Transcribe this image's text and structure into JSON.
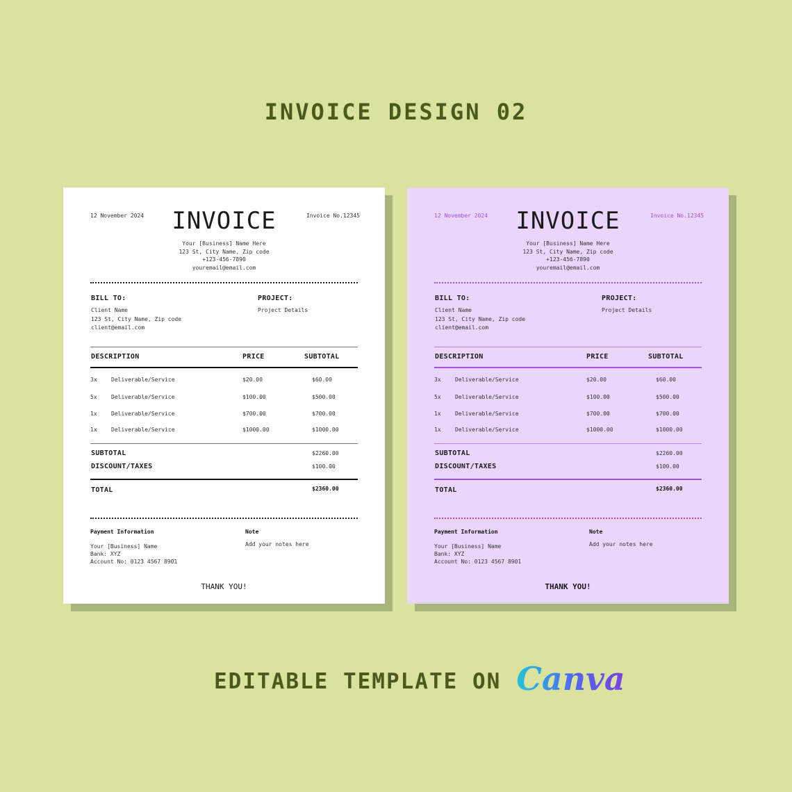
{
  "heading": "INVOICE DESIGN 02",
  "footer": {
    "text": "EDITABLE TEMPLATE ON",
    "logo": "Canva"
  },
  "colors": {
    "background": "#d9e39d",
    "heading_text": "#4b5a1c",
    "purple_card": "#ead5fc",
    "purple_accent": "#a24fe0"
  },
  "invoices": [
    {
      "variant": "white",
      "date": "12 November 2024",
      "title": "INVOICE",
      "invoice_no": "Invoice No.12345",
      "business": [
        "Your [Business] Name Here",
        "123 St, City Name, Zip code",
        "+123-456-7890",
        "youremail@email.com"
      ],
      "bill_to_label": "BILL TO:",
      "client": [
        "Client Name",
        "123 St, City Name, Zip code",
        "client@email.com"
      ],
      "project_label": "PROJECT:",
      "project": "Project Details",
      "columns": [
        "DESCRIPTION",
        "PRICE",
        "SUBTOTAL"
      ],
      "items": [
        {
          "qty": "3x",
          "desc": "Deliverable/Service",
          "price": "$20.00",
          "subtotal": "$60.00"
        },
        {
          "qty": "5x",
          "desc": "Deliverable/Service",
          "price": "$100.00",
          "subtotal": "$500.00"
        },
        {
          "qty": "1x",
          "desc": "Deliverable/Service",
          "price": "$700.00",
          "subtotal": "$700.00"
        },
        {
          "qty": "1x",
          "desc": "Deliverable/Service",
          "price": "$1000.00",
          "subtotal": "$1000.00"
        }
      ],
      "subtotal_label": "SUBTOTAL",
      "subtotal": "$2260.00",
      "discount_label": "DISCOUNT/TAXES",
      "discount": "$100.00",
      "total_label": "TOTAL",
      "total": "$2360.00",
      "payment_label": "Payment Information",
      "payment": [
        "Your [Business] Name",
        "Bank: XYZ",
        "Account No: 0123 4567 8901"
      ],
      "note_label": "Note",
      "note": "Add your notes here",
      "thanks": "THANK YOU!"
    },
    {
      "variant": "purple",
      "date": "12 November 2024",
      "title": "INVOICE",
      "invoice_no": "Invoice No.12345",
      "business": [
        "Your [Business] Name Here",
        "123 St, City Name, Zip code",
        "+123-456-7890",
        "youremail@email.com"
      ],
      "bill_to_label": "BILL TO:",
      "client": [
        "Client Name",
        "123 St, City Name, Zip code",
        "client@email.com"
      ],
      "project_label": "PROJECT:",
      "project": "Project Details",
      "columns": [
        "DESCRIPTION",
        "PRICE",
        "SUBTOTAL"
      ],
      "items": [
        {
          "qty": "3x",
          "desc": "Deliverable/Service",
          "price": "$20.00",
          "subtotal": "$60.00"
        },
        {
          "qty": "5x",
          "desc": "Deliverable/Service",
          "price": "$100.00",
          "subtotal": "$500.00"
        },
        {
          "qty": "1x",
          "desc": "Deliverable/Service",
          "price": "$700.00",
          "subtotal": "$700.00"
        },
        {
          "qty": "1x",
          "desc": "Deliverable/Service",
          "price": "$1000.00",
          "subtotal": "$1000.00"
        }
      ],
      "subtotal_label": "SUBTOTAL",
      "subtotal": "$2260.00",
      "discount_label": "DISCOUNT/TAXES",
      "discount": "$100.00",
      "total_label": "TOTAL",
      "total": "$2360.00",
      "payment_label": "Payment Information",
      "payment": [
        "Your [Business] Name",
        "Bank: XYZ",
        "Account No: 0123 4567 8901"
      ],
      "note_label": "Note",
      "note": "Add your notes here",
      "thanks": "THANK YOU!"
    }
  ]
}
